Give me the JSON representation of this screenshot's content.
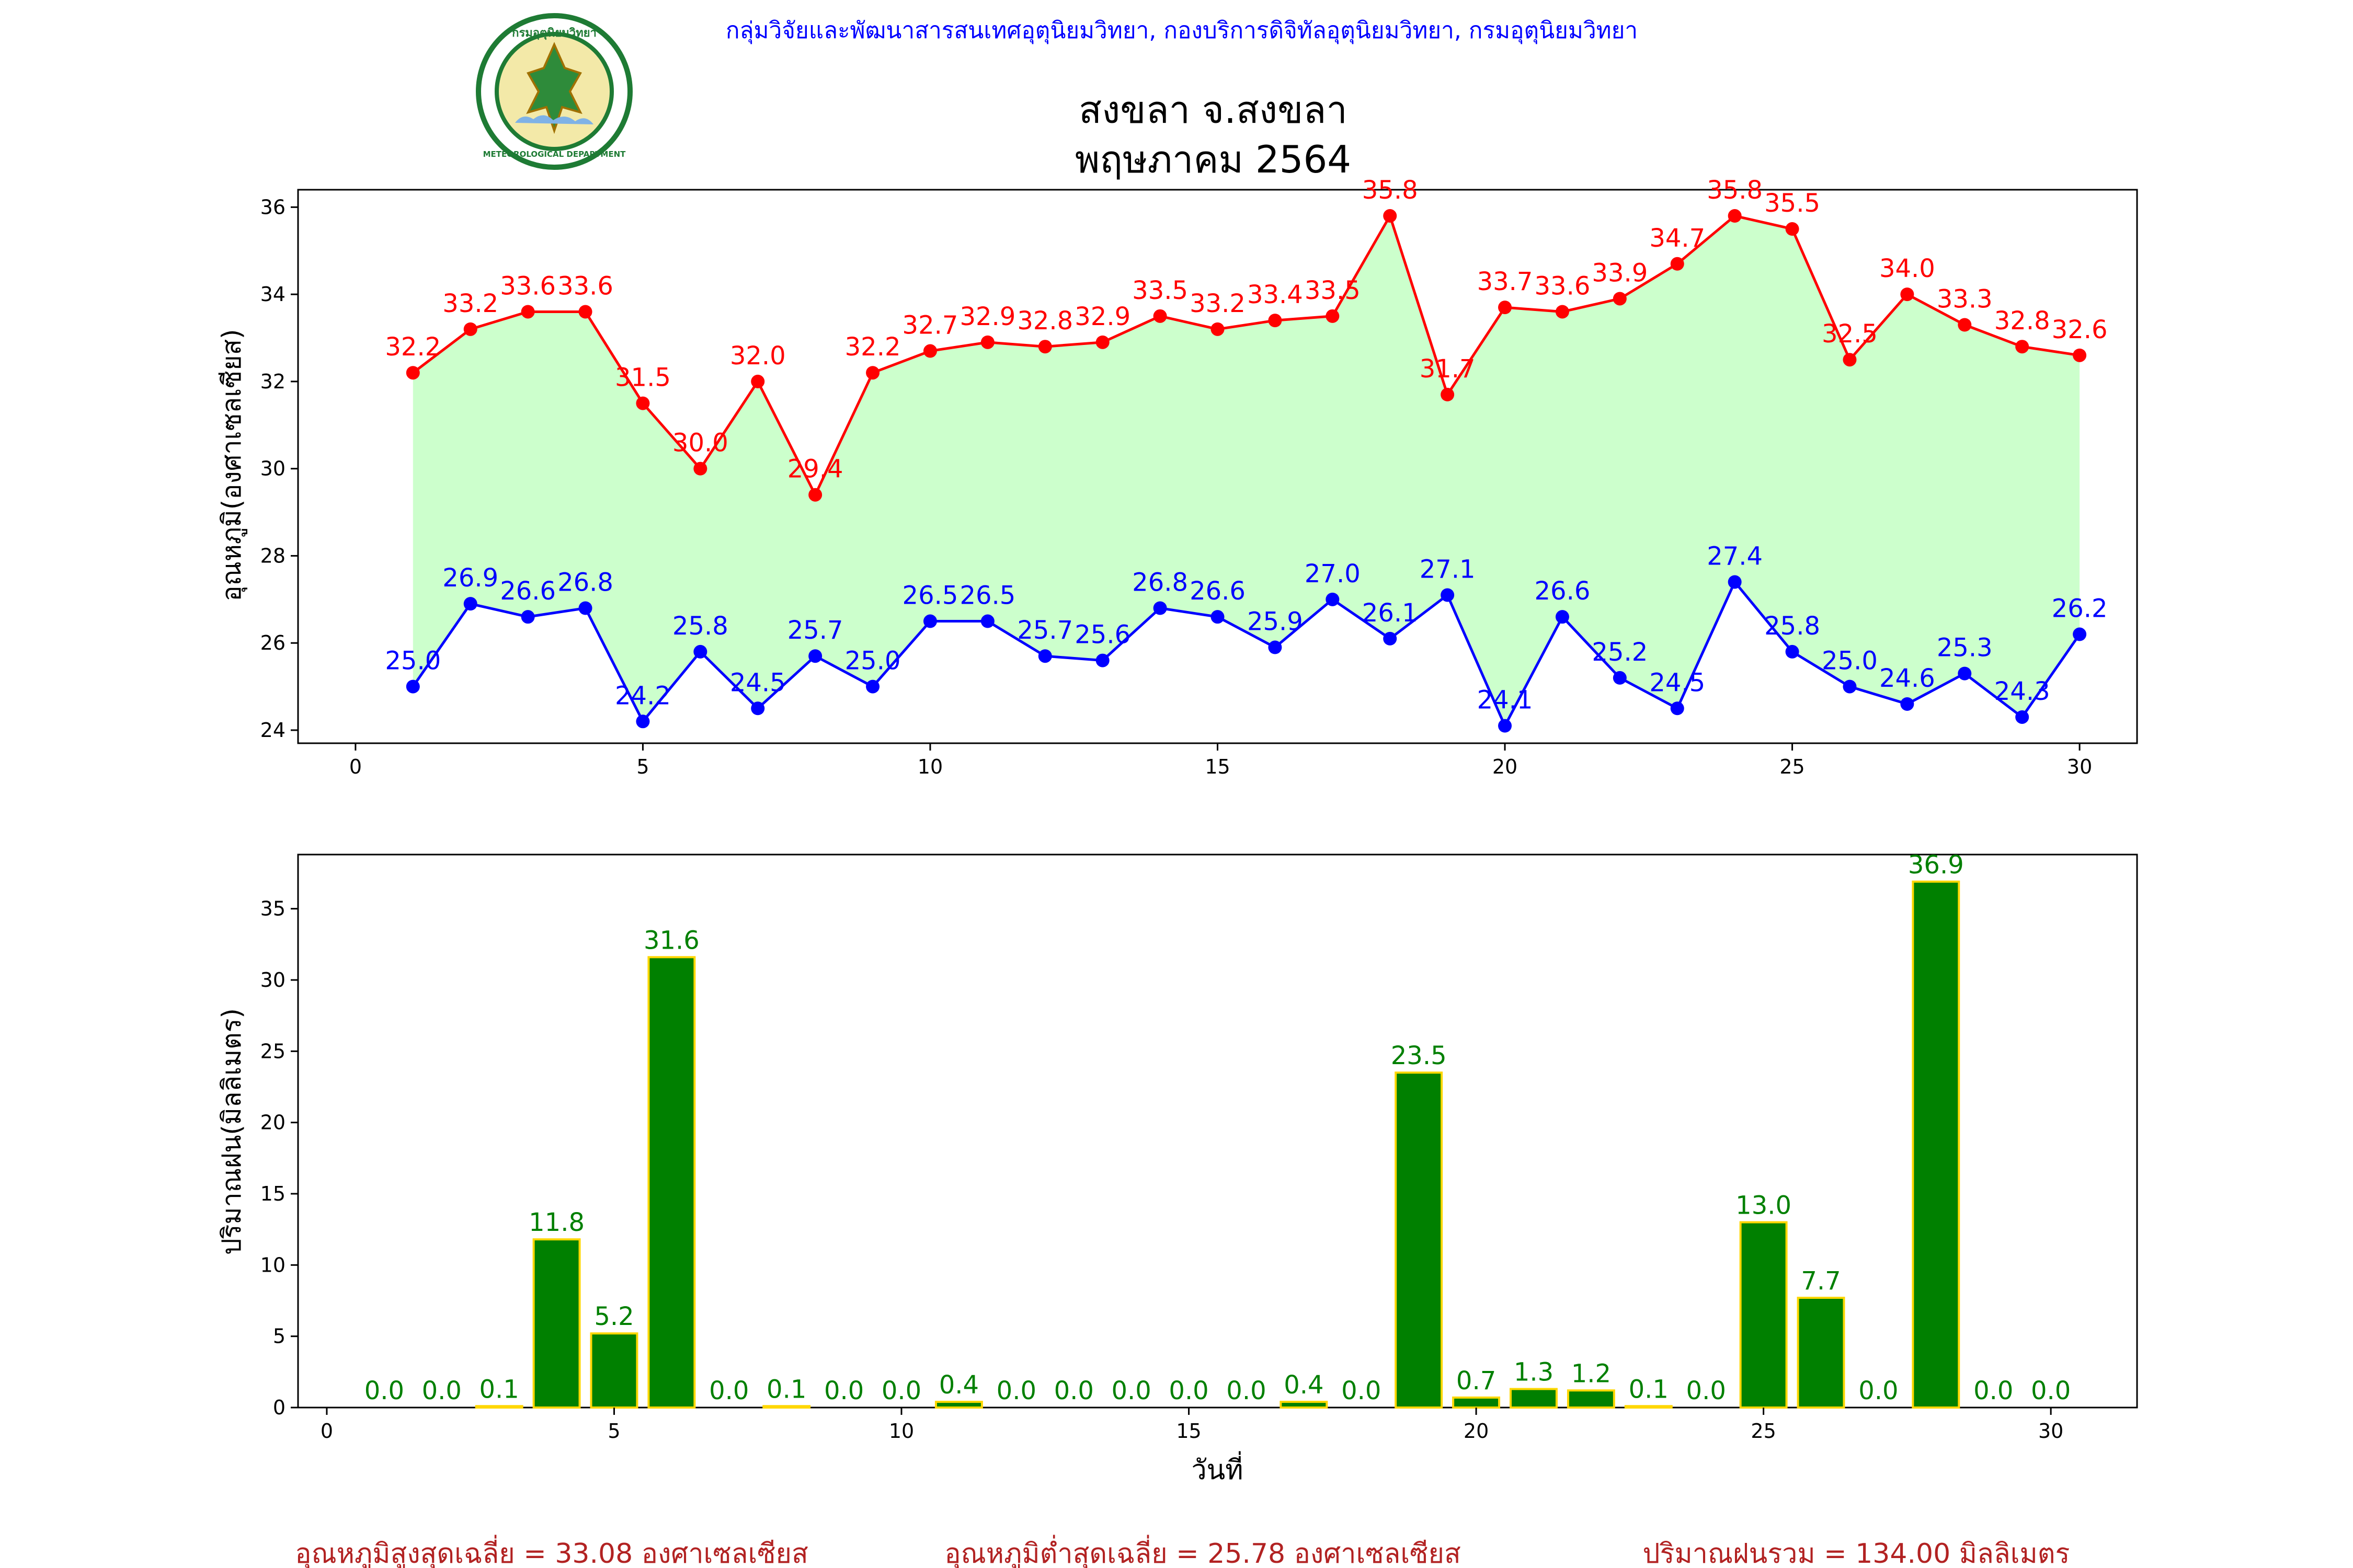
{
  "header": {
    "department_line": "กลุ่มวิจัยและพัฒนาสารสนเทศอุตุนิยมวิทยา, กองบริการดิจิทัลอุตุนิยมวิทยา, กรมอุตุนิยมวิทยา",
    "logo_label": "กรมอุตุนิยมวิทยา",
    "logo_ring_text": "METEOROLOGICAL DEPARTMENT",
    "title_line1": "สงขลา จ.สงขลา",
    "title_line2": "พฤษภาคม 2564"
  },
  "colors": {
    "max_series": "#ff0000",
    "min_series": "#0000ff",
    "fill_between": "#ccffcc",
    "rain_bar": "#008000",
    "rain_bar_edge": "#ffd700",
    "rain_label": "#008000",
    "header_text": "#0000ff",
    "summary_text": "#b22222",
    "logo_green": "#1e7b34"
  },
  "chart_data": [
    {
      "type": "line",
      "ylabel": "อุณหภูมิ(องศาเซลเซียส)",
      "xlabel": "",
      "xlim": [
        -1,
        31
      ],
      "ylim": [
        23.7,
        36.4
      ],
      "xticks": [
        0,
        5,
        10,
        15,
        20,
        25,
        30
      ],
      "yticks": [
        24,
        26,
        28,
        30,
        32,
        34,
        36
      ],
      "grid": false,
      "fill_between_series": true,
      "x": [
        1,
        2,
        3,
        4,
        5,
        6,
        7,
        8,
        9,
        10,
        11,
        12,
        13,
        14,
        15,
        16,
        17,
        18,
        19,
        20,
        21,
        22,
        23,
        24,
        25,
        26,
        27,
        28,
        29,
        30
      ],
      "series": [
        {
          "values": [
            32.2,
            33.2,
            33.6,
            33.6,
            31.5,
            30.0,
            32.0,
            29.4,
            32.2,
            32.7,
            32.9,
            32.8,
            32.9,
            33.5,
            33.2,
            33.4,
            33.5,
            35.8,
            31.7,
            33.7,
            33.6,
            33.9,
            34.7,
            35.8,
            35.5,
            32.5,
            34.0,
            33.3,
            32.8,
            32.6
          ]
        },
        {
          "values": [
            25.0,
            26.9,
            26.6,
            26.8,
            24.2,
            25.8,
            24.5,
            25.7,
            25.0,
            26.5,
            26.5,
            25.7,
            25.6,
            26.8,
            26.6,
            25.9,
            27.0,
            26.1,
            27.1,
            24.1,
            26.6,
            25.2,
            24.5,
            27.4,
            25.8,
            25.0,
            24.6,
            25.3,
            24.3,
            26.2
          ]
        }
      ]
    },
    {
      "type": "bar",
      "ylabel": "ปริมาณฝน(มิลลิเมตร)",
      "xlabel": "วันที่",
      "xlim": [
        -0.5,
        31.5
      ],
      "ylim": [
        0,
        38.8
      ],
      "xticks": [
        0,
        5,
        10,
        15,
        20,
        25,
        30
      ],
      "yticks": [
        0,
        5,
        10,
        15,
        20,
        25,
        30,
        35
      ],
      "grid": false,
      "x": [
        1,
        2,
        3,
        4,
        5,
        6,
        7,
        8,
        9,
        10,
        11,
        12,
        13,
        14,
        15,
        16,
        17,
        18,
        19,
        20,
        21,
        22,
        23,
        24,
        25,
        26,
        27,
        28,
        29,
        30
      ],
      "values": [
        0.0,
        0.0,
        0.1,
        11.8,
        5.2,
        31.6,
        0.0,
        0.1,
        0.0,
        0.0,
        0.4,
        0.0,
        0.0,
        0.0,
        0.0,
        0.0,
        0.4,
        0.0,
        23.5,
        0.7,
        1.3,
        1.2,
        0.1,
        0.0,
        13.0,
        7.7,
        0.0,
        36.9,
        0.0,
        0.0
      ]
    }
  ],
  "summary": {
    "avg_max": "อุณหภูมิสูงสุดเฉลี่ย = 33.08 องศาเซลเซียส",
    "avg_min": "อุณหภูมิต่ำสุดเฉลี่ย = 25.78 องศาเซลเซียส",
    "total_rain": "ปริมาณฝนรวม = 134.00 มิลลิเมตร"
  }
}
